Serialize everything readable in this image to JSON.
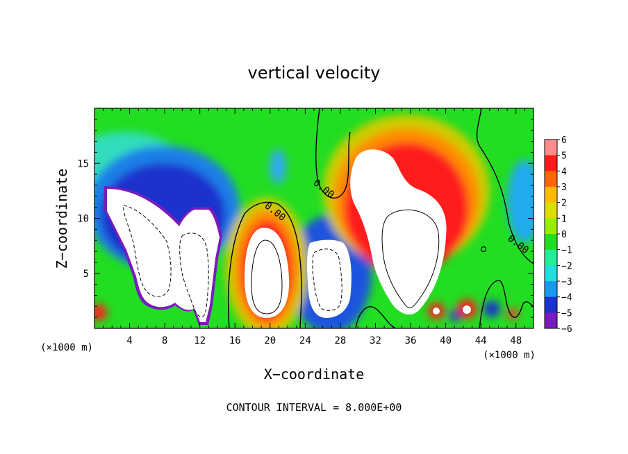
{
  "chart_data": {
    "type": "heatmap",
    "title": "vertical velocity",
    "xlabel": "X−coordinate",
    "ylabel": "Z−coordinate",
    "x_unit_left": "(×1000 m)",
    "x_unit_right": "(×1000 m)",
    "xlim": [
      0,
      50
    ],
    "ylim": [
      0,
      20
    ],
    "x_ticks": [
      4,
      8,
      12,
      16,
      20,
      24,
      28,
      32,
      36,
      40,
      44,
      48
    ],
    "y_ticks": [
      5,
      10,
      15
    ],
    "colorbar": {
      "range": [
        -6,
        6
      ],
      "tick_labels": [
        "6",
        "5",
        "4",
        "3",
        "2",
        "1",
        "0",
        "−1",
        "−2",
        "−3",
        "−4",
        "−5",
        "−6"
      ]
    },
    "contour_labels": [
      "0.00",
      "0.00",
      "0.00"
    ],
    "footer": "CONTOUR INTERVAL = 8.000E+00",
    "features": [
      {
        "name": "updraft",
        "x": 19.8,
        "z": 5.8,
        "amplitude": 16
      },
      {
        "name": "updraft",
        "x": 35.8,
        "z": 9.5,
        "amplitude": 18
      },
      {
        "name": "downdraft",
        "x": 7.3,
        "z": 8.7,
        "amplitude": -16
      },
      {
        "name": "downdraft",
        "x": 12.0,
        "z": 6.5,
        "amplitude": -14
      },
      {
        "name": "downdraft",
        "x": 26.5,
        "z": 6.0,
        "amplitude": -12
      }
    ]
  }
}
